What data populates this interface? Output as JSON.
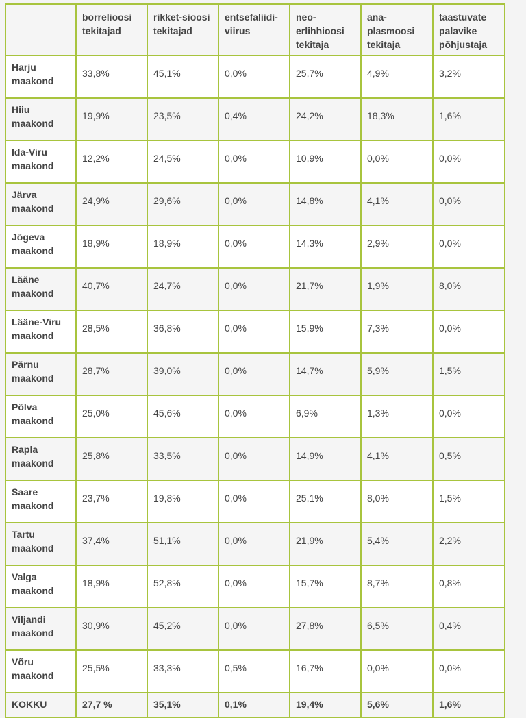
{
  "table": {
    "headers": [
      "",
      "borrelioosi tekitajad",
      "rikket-sioosi tekitajad",
      "entsefaliidi-viirus",
      "neo-erlihhioosi tekitaja",
      "ana-plasmoosi tekitaja",
      "taastuvate palavike põhjustaja"
    ],
    "rows": [
      {
        "name": "Harju maakond",
        "values": [
          "33,8%",
          "45,1%",
          "0,0%",
          "25,7%",
          "4,9%",
          "3,2%"
        ]
      },
      {
        "name": "Hiiu maakond",
        "values": [
          "19,9%",
          "23,5%",
          "0,4%",
          "24,2%",
          "18,3%",
          "1,6%"
        ]
      },
      {
        "name": "Ida-Viru maakond",
        "values": [
          "12,2%",
          "24,5%",
          "0,0%",
          "10,9%",
          "0,0%",
          "0,0%"
        ]
      },
      {
        "name": "Järva maakond",
        "values": [
          "24,9%",
          "29,6%",
          "0,0%",
          "14,8%",
          "4,1%",
          "0,0%"
        ]
      },
      {
        "name": "Jõgeva maakond",
        "values": [
          "18,9%",
          "18,9%",
          "0,0%",
          "14,3%",
          "2,9%",
          "0,0%"
        ]
      },
      {
        "name": "Lääne maakond",
        "values": [
          "40,7%",
          "24,7%",
          "0,0%",
          "21,7%",
          "1,9%",
          "8,0%"
        ]
      },
      {
        "name": "Lääne-Viru maakond",
        "values": [
          "28,5%",
          "36,8%",
          "0,0%",
          "15,9%",
          "7,3%",
          "0,0%"
        ]
      },
      {
        "name": "Pärnu maakond",
        "values": [
          "28,7%",
          "39,0%",
          "0,0%",
          "14,7%",
          "5,9%",
          "1,5%"
        ]
      },
      {
        "name": "Põlva maakond",
        "values": [
          "25,0%",
          "45,6%",
          "0,0%",
          "6,9%",
          "1,3%",
          "0,0%"
        ]
      },
      {
        "name": "Rapla maakond",
        "values": [
          "25,8%",
          "33,5%",
          "0,0%",
          "14,9%",
          "4,1%",
          "0,5%"
        ]
      },
      {
        "name": "Saare maakond",
        "values": [
          "23,7%",
          "19,8%",
          "0,0%",
          "25,1%",
          "8,0%",
          "1,5%"
        ]
      },
      {
        "name": "Tartu maakond",
        "values": [
          "37,4%",
          "51,1%",
          "0,0%",
          "21,9%",
          "5,4%",
          "2,2%"
        ]
      },
      {
        "name": "Valga maakond",
        "values": [
          "18,9%",
          "52,8%",
          "0,0%",
          "15,7%",
          "8,7%",
          "0,8%"
        ]
      },
      {
        "name": "Viljandi maakond",
        "values": [
          "30,9%",
          "45,2%",
          "0,0%",
          "27,8%",
          "6,5%",
          "0,4%"
        ]
      },
      {
        "name": "Võru maakond",
        "values": [
          "25,5%",
          "33,3%",
          "0,5%",
          "16,7%",
          "0,0%",
          "0,0%"
        ]
      }
    ],
    "total": {
      "name": "KOKKU",
      "values": [
        "27,7 %",
        "35,1%",
        "0,1%",
        "19,4%",
        "5,6%",
        "1,6%"
      ]
    }
  },
  "colors": {
    "border": "#a8c43e",
    "row_alt": "#f5f5f5",
    "row": "#ffffff",
    "page_background": "#f4f4f4"
  }
}
